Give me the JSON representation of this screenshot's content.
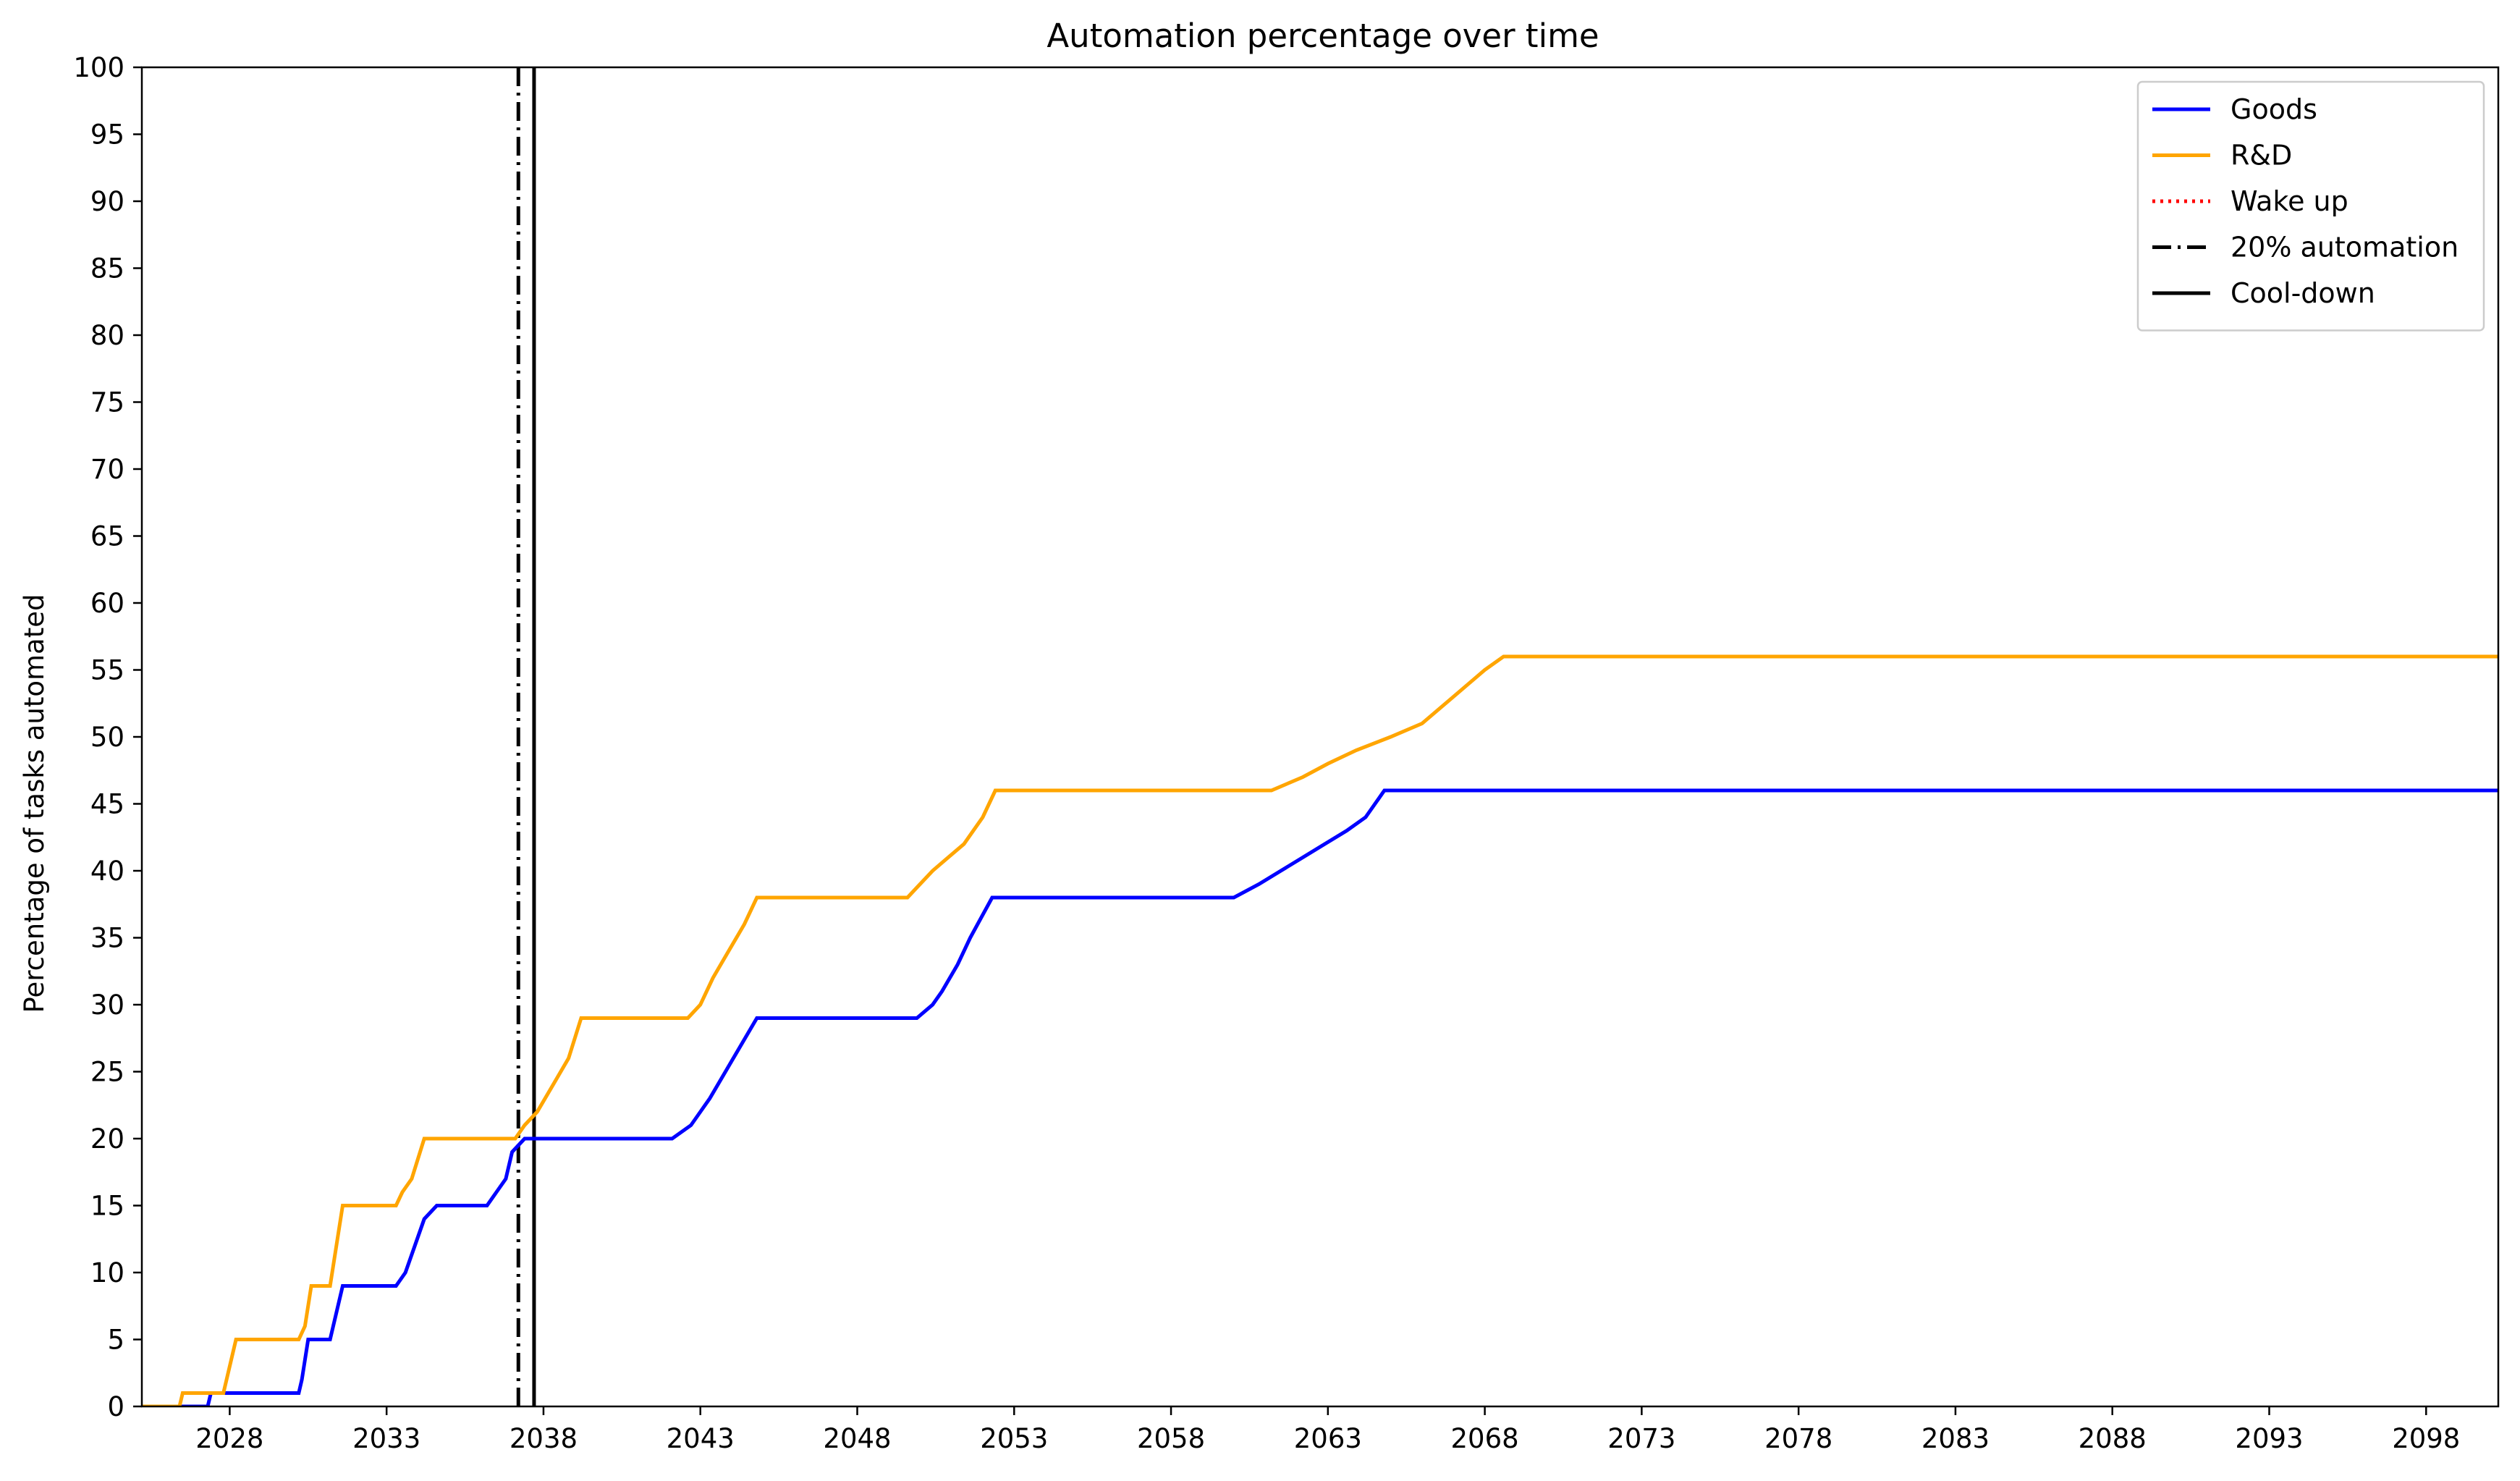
{
  "chart_data": {
    "type": "line",
    "title": "Automation percentage over time",
    "xlabel": "",
    "ylabel": "Percentage of tasks automated",
    "xlim": [
      2025.2,
      2100.3
    ],
    "ylim": [
      0,
      100
    ],
    "xticks": [
      2028,
      2033,
      2038,
      2043,
      2048,
      2053,
      2058,
      2063,
      2068,
      2073,
      2078,
      2083,
      2088,
      2093,
      2098
    ],
    "yticks": [
      0,
      5,
      10,
      15,
      20,
      25,
      30,
      35,
      40,
      45,
      50,
      55,
      60,
      65,
      70,
      75,
      80,
      85,
      90,
      95,
      100
    ],
    "grid": false,
    "legend_position": "top-right",
    "colors": {
      "goods": "#0000ff",
      "rd": "#ffa500",
      "wake_up": "#ff0000",
      "automation_20": "#000000",
      "cool_down": "#000000"
    },
    "series": [
      {
        "name": "Goods",
        "x": [
          2025.2,
          2027.3,
          2027.4,
          2030.2,
          2030.3,
          2030.5,
          2031.2,
          2031.6,
          2033.3,
          2033.6,
          2033.9,
          2034.2,
          2034.6,
          2036.2,
          2036.5,
          2036.8,
          2037.0,
          2037.4,
          2042.1,
          2042.7,
          2043.0,
          2043.3,
          2043.8,
          2044.3,
          2044.8,
          2049.9,
          2050.4,
          2050.7,
          2051.2,
          2051.6,
          2052.3,
          2060.0,
          2060.8,
          2061.5,
          2062.2,
          2062.9,
          2063.6,
          2064.2,
          2064.8,
          2100.3
        ],
        "values": [
          0,
          0,
          1,
          1,
          2,
          5,
          5,
          9,
          9,
          10,
          12,
          14,
          15,
          15,
          16,
          17,
          19,
          20,
          20,
          21,
          22,
          23,
          25,
          27,
          29,
          29,
          30,
          31,
          33,
          35,
          38,
          38,
          39,
          40,
          41,
          42,
          43,
          44,
          46,
          46
        ]
      },
      {
        "name": "R&D",
        "x": [
          2025.2,
          2026.4,
          2026.5,
          2027.8,
          2028.2,
          2030.2,
          2030.4,
          2030.6,
          2031.2,
          2031.6,
          2033.3,
          2033.5,
          2033.8,
          2034.2,
          2037.1,
          2037.4,
          2037.8,
          2038.3,
          2038.8,
          2039.2,
          2042.6,
          2043.0,
          2043.4,
          2043.9,
          2044.4,
          2044.8,
          2049.6,
          2050.0,
          2050.4,
          2050.9,
          2051.4,
          2052.0,
          2052.4,
          2061.2,
          2062.2,
          2063.0,
          2063.9,
          2065.0,
          2066.0,
          2067.0,
          2068.0,
          2068.6,
          2100.3
        ],
        "values": [
          0,
          0,
          1,
          1,
          5,
          5,
          6,
          9,
          9,
          15,
          15,
          16,
          17,
          20,
          20,
          21,
          22,
          24,
          26,
          29,
          29,
          30,
          32,
          34,
          36,
          38,
          38,
          39,
          40,
          41,
          42,
          44,
          46,
          46,
          47,
          48,
          49,
          50,
          51,
          53,
          55,
          56,
          56
        ]
      }
    ],
    "vertical_lines": [
      {
        "name": "20% automation",
        "x": 2037.2,
        "style": "dashdot"
      },
      {
        "name": "Cool-down",
        "x": 2037.7,
        "style": "solid"
      }
    ],
    "legend": [
      {
        "label": "Goods",
        "style": "solid",
        "color": "#0000ff"
      },
      {
        "label": "R&D",
        "style": "solid",
        "color": "#ffa500"
      },
      {
        "label": "Wake up",
        "style": "dotted",
        "color": "#ff0000"
      },
      {
        "label": "20% automation",
        "style": "dashdot",
        "color": "#000000"
      },
      {
        "label": "Cool-down",
        "style": "solid",
        "color": "#000000"
      }
    ]
  }
}
